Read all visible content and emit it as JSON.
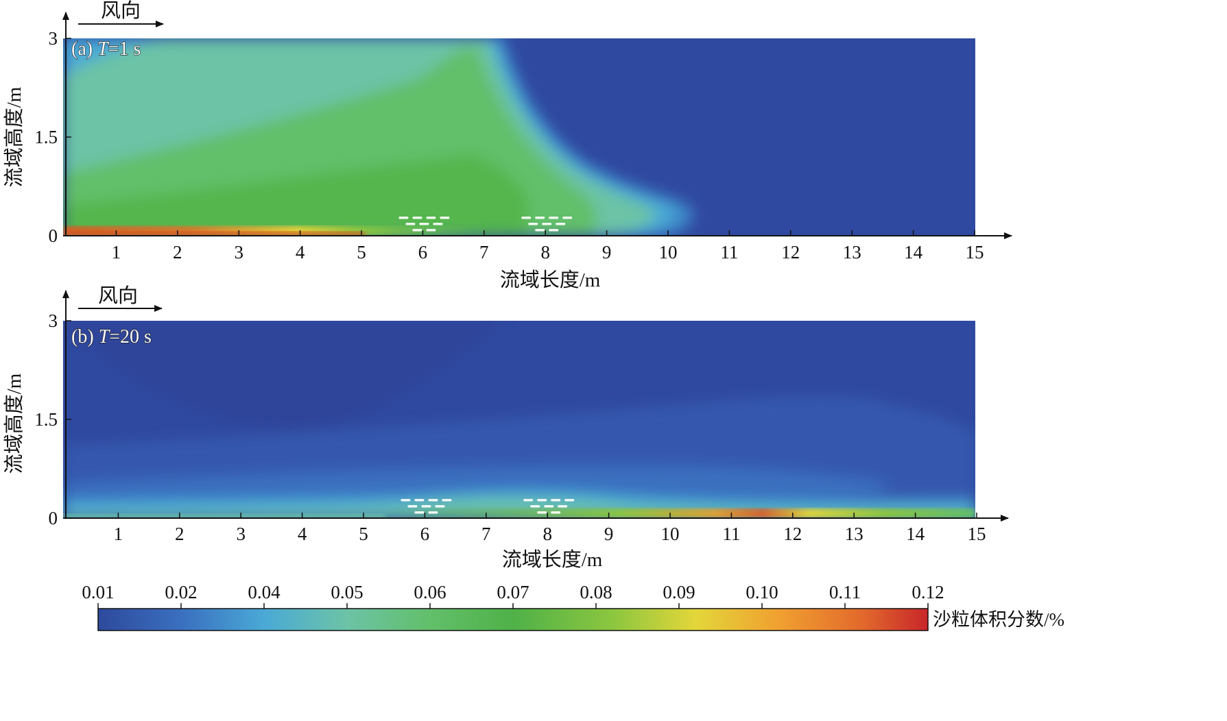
{
  "chart_data": [
    {
      "type": "heatmap",
      "panel_label": "(a) T=1 s",
      "panel_prefix": "(a) ",
      "panel_var": "T",
      "panel_suffix": "=1 s",
      "wind_label": "风向",
      "xlabel": "流域长度/m",
      "ylabel": "流域高度/m",
      "xlim": [
        0,
        15
      ],
      "ylim": [
        0,
        3
      ],
      "x_ticks": [
        1,
        2,
        3,
        4,
        5,
        6,
        7,
        8,
        9,
        10,
        11,
        12,
        13,
        14,
        15
      ],
      "y_ticks": [
        0,
        1.5,
        3
      ],
      "y_tick_labels": [
        "0",
        "1.5",
        "3"
      ],
      "obstacle_groups_x": [
        6,
        8
      ]
    },
    {
      "type": "heatmap",
      "panel_label": "(b) T=20 s",
      "panel_prefix": "(b) ",
      "panel_var": "T",
      "panel_suffix": "=20 s",
      "wind_label": "风向",
      "xlabel": "流域长度/m",
      "ylabel": "流域高度/m",
      "xlim": [
        0,
        15
      ],
      "ylim": [
        0,
        3
      ],
      "x_ticks": [
        1,
        2,
        3,
        4,
        5,
        6,
        7,
        8,
        9,
        10,
        11,
        12,
        13,
        14,
        15
      ],
      "y_ticks": [
        0,
        1.5,
        3
      ],
      "y_tick_labels": [
        "0",
        "1.5",
        "3"
      ],
      "obstacle_groups_x": [
        6,
        8
      ]
    }
  ],
  "colorbar": {
    "label": "沙粒体积分数/%",
    "ticks": [
      "0.01",
      "0.02",
      "0.04",
      "0.05",
      "0.06",
      "0.07",
      "0.08",
      "0.09",
      "0.10",
      "0.11",
      "0.12"
    ],
    "colors": [
      "#2e4a9c",
      "#3a6fbf",
      "#4aa9d6",
      "#6cc3a6",
      "#62bf6a",
      "#4fb148",
      "#8cc63f",
      "#e3d63a",
      "#f0a030",
      "#e26a2c",
      "#c8262a"
    ]
  }
}
